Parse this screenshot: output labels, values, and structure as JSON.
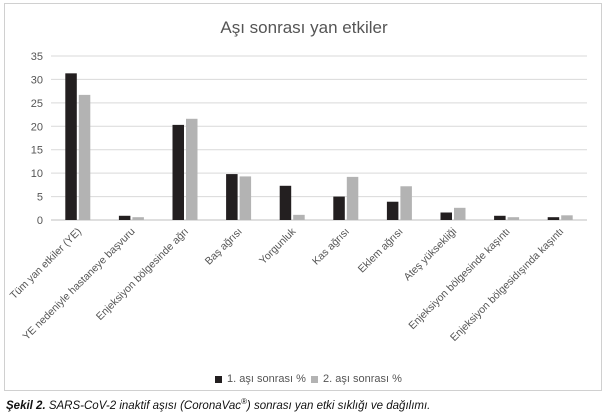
{
  "caption": {
    "figure_label": "Şekil 2.",
    "text_before": "SARS-CoV-2 inaktif aşısı (CoronaVac",
    "superscript": "®",
    "text_after": ") sonrası yan etki sıklığı ve dağılımı."
  },
  "colors": {
    "series1": "#231f20",
    "series2": "#b3b3b3",
    "grid": "#d9d9d9",
    "axis": "#bfbfbf"
  },
  "chart_data": {
    "type": "bar",
    "title": "Aşı sonrası yan etkiler",
    "xlabel": "",
    "ylabel": "",
    "ylim": [
      0,
      35
    ],
    "yticks": [
      "0",
      "5",
      "10",
      "15",
      "20",
      "25",
      "30",
      "35"
    ],
    "grid": true,
    "legend_position": "bottom",
    "categories": [
      "Tüm yan etkiler (YE)",
      "YE nedeniyle hastaneye başvuru",
      "Enjeksiyon bölgesinde ağrı",
      "Baş ağrısı",
      "Yorgunluk",
      "Kas ağrısı",
      "Eklem ağrısı",
      "Ateş yüksekliği",
      "Enjeksiyon bölgesinde kaşıntı",
      "Enjeksiyon bölgesidışında kaşıntı"
    ],
    "series": [
      {
        "name": "1. aşı sonrası %",
        "values": [
          31.3,
          0.9,
          20.3,
          9.8,
          7.3,
          5.0,
          3.9,
          1.6,
          0.9,
          0.6
        ]
      },
      {
        "name": "2. aşı sonrası %",
        "values": [
          26.7,
          0.6,
          21.6,
          9.3,
          1.1,
          9.2,
          7.2,
          2.6,
          0.6,
          1.0
        ]
      }
    ]
  }
}
